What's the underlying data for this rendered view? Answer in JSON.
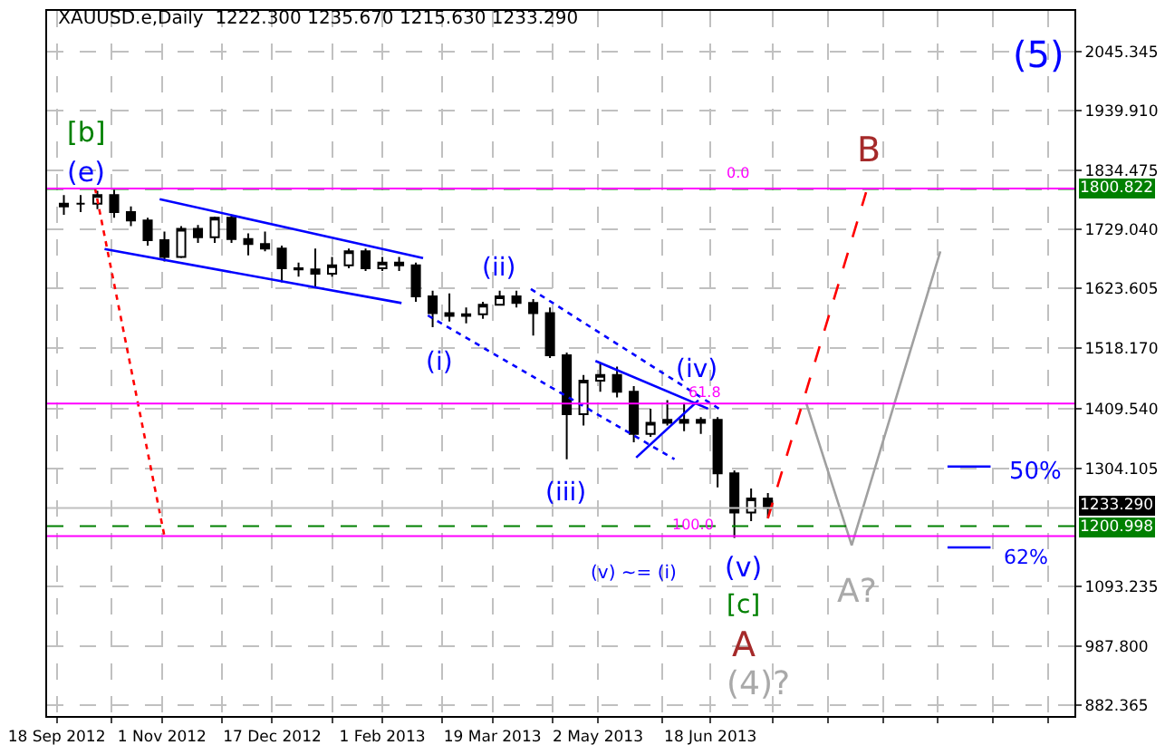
{
  "chart_data": {
    "type": "candlestick",
    "title": "XAUUSD.e,Daily  1222.300 1235.670 1215.630 1233.290",
    "x": [
      "2012-09-21",
      "2012-09-28",
      "2012-10-05",
      "2012-10-12",
      "2012-10-19",
      "2012-10-26",
      "2012-11-02",
      "2012-11-09",
      "2012-11-16",
      "2012-11-23",
      "2012-11-30",
      "2012-12-07",
      "2012-12-14",
      "2012-12-21",
      "2012-12-28",
      "2013-01-04",
      "2013-01-11",
      "2013-01-18",
      "2013-01-25",
      "2013-02-01",
      "2013-02-08",
      "2013-02-15",
      "2013-02-22",
      "2013-03-01",
      "2013-03-08",
      "2013-03-15",
      "2013-03-22",
      "2013-03-29",
      "2013-04-05",
      "2013-04-12",
      "2013-04-19",
      "2013-04-26",
      "2013-05-03",
      "2013-05-10",
      "2013-05-17",
      "2013-05-24",
      "2013-05-31",
      "2013-06-07",
      "2013-06-14",
      "2013-06-21",
      "2013-06-28",
      "2013-07-05",
      "2013-07-12"
    ],
    "ohlc": [
      [
        1770,
        1790,
        1755,
        1775
      ],
      [
        1775,
        1790,
        1760,
        1775
      ],
      [
        1775,
        1798,
        1765,
        1790
      ],
      [
        1790,
        1800,
        1750,
        1760
      ],
      [
        1760,
        1770,
        1735,
        1745
      ],
      [
        1745,
        1750,
        1700,
        1710
      ],
      [
        1710,
        1725,
        1672,
        1680
      ],
      [
        1680,
        1735,
        1678,
        1730
      ],
      [
        1730,
        1737,
        1705,
        1715
      ],
      [
        1715,
        1752,
        1705,
        1750
      ],
      [
        1750,
        1755,
        1705,
        1712
      ],
      [
        1712,
        1722,
        1683,
        1703
      ],
      [
        1703,
        1725,
        1690,
        1695
      ],
      [
        1695,
        1700,
        1635,
        1660
      ],
      [
        1660,
        1670,
        1645,
        1658
      ],
      [
        1658,
        1695,
        1625,
        1650
      ],
      [
        1650,
        1680,
        1645,
        1665
      ],
      [
        1665,
        1695,
        1660,
        1690
      ],
      [
        1690,
        1695,
        1655,
        1660
      ],
      [
        1660,
        1680,
        1655,
        1670
      ],
      [
        1670,
        1680,
        1655,
        1665
      ],
      [
        1665,
        1670,
        1600,
        1610
      ],
      [
        1610,
        1620,
        1555,
        1580
      ],
      [
        1580,
        1615,
        1565,
        1575
      ],
      [
        1575,
        1590,
        1562,
        1578
      ],
      [
        1578,
        1600,
        1570,
        1595
      ],
      [
        1595,
        1620,
        1595,
        1610
      ],
      [
        1610,
        1620,
        1590,
        1598
      ],
      [
        1598,
        1605,
        1540,
        1580
      ],
      [
        1580,
        1590,
        1500,
        1505
      ],
      [
        1505,
        1510,
        1320,
        1400
      ],
      [
        1400,
        1470,
        1380,
        1460
      ],
      [
        1460,
        1490,
        1440,
        1470
      ],
      [
        1470,
        1485,
        1430,
        1440
      ],
      [
        1440,
        1450,
        1350,
        1365
      ],
      [
        1365,
        1410,
        1360,
        1385
      ],
      [
        1385,
        1425,
        1380,
        1390
      ],
      [
        1390,
        1420,
        1370,
        1385
      ],
      [
        1385,
        1395,
        1365,
        1390
      ],
      [
        1390,
        1395,
        1270,
        1295
      ],
      [
        1295,
        1300,
        1180,
        1225
      ],
      [
        1225,
        1268,
        1210,
        1250
      ],
      [
        1250,
        1260,
        1215,
        1233
      ]
    ],
    "color": "#000000",
    "series": [
      {
        "type": "line",
        "x": [
          "2012-10-31",
          "2013-02-18"
        ],
        "values": [
          1783,
          1678
        ],
        "color": "#0000ff",
        "line_style": "solid"
      },
      {
        "type": "line",
        "x": [
          "2012-10-08",
          "2013-02-09"
        ],
        "values": [
          1694,
          1598
        ],
        "color": "#0000ff",
        "line_style": "solid"
      },
      {
        "type": "line",
        "x": [
          "2013-04-04",
          "2013-06-23"
        ],
        "values": [
          1623,
          1406
        ],
        "color": "#0000ff",
        "line_style": "dotted"
      },
      {
        "type": "line",
        "x": [
          "2013-02-20",
          "2013-06-03"
        ],
        "values": [
          1576,
          1320
        ],
        "color": "#0000ff",
        "line_style": "dotted"
      },
      {
        "type": "line",
        "x": [
          "2013-05-18",
          "2013-06-13"
        ],
        "values": [
          1323,
          1425
        ],
        "color": "#0000ff",
        "line_style": "solid"
      },
      {
        "type": "line",
        "x": [
          "2013-05-01",
          "2013-06-17"
        ],
        "values": [
          1495,
          1410
        ],
        "color": "#0000ff",
        "line_style": "solid"
      },
      {
        "type": "line",
        "x": [
          "2012-10-04",
          "2012-11-02"
        ],
        "values": [
          1803,
          1183
        ],
        "color": "#ff0000",
        "line_style": "dotted"
      },
      {
        "type": "line",
        "x": [
          "2013-07-12",
          "2013-08-22"
        ],
        "values": [
          1215,
          1795
        ],
        "color": "#ff0000",
        "line_style": "dashed"
      },
      {
        "type": "line",
        "x": [
          "2013-07-28",
          "2013-08-16",
          "2013-09-22"
        ],
        "values": [
          1420,
          1167,
          1690
        ],
        "color": "#a0a0a0",
        "line_style": "solid"
      },
      {
        "type": "line",
        "x": [
          "2013-09-25",
          "2013-10-13"
        ],
        "values": [
          1307,
          1307
        ],
        "color": "#0000ff",
        "line_style": "solid"
      },
      {
        "type": "line",
        "x": [
          "2013-09-25",
          "2013-10-13"
        ],
        "values": [
          1163,
          1163
        ],
        "color": "#0000ff",
        "line_style": "solid"
      }
    ],
    "ref_lines": [
      {
        "axis": "y",
        "value": 1800.822,
        "label": "1800.822",
        "color": "#008000",
        "line_style": "dashed"
      },
      {
        "axis": "y",
        "value": 1200.998,
        "label": "1200.998",
        "color": "#008000",
        "line_style": "dashed"
      },
      {
        "axis": "y",
        "value": 1233.29,
        "label": "1233.290",
        "color": "#c0c0c0",
        "line_style": "solid"
      },
      {
        "axis": "y",
        "value": 1802,
        "color": "#ff00ff",
        "line_style": "solid"
      },
      {
        "axis": "y",
        "value": 1419,
        "color": "#ff00ff",
        "line_style": "solid"
      },
      {
        "axis": "y",
        "value": 1183,
        "color": "#ff00ff",
        "line_style": "solid"
      }
    ],
    "annotations": [
      "[b]",
      "(e)",
      "(5)",
      "B",
      "(ii)",
      "(i)",
      "(iii)",
      "(iv)",
      "(v) ~= (i)",
      "(v)",
      "[c]",
      "A",
      "(4)?",
      "A?",
      "50%",
      "62%",
      "0.0",
      {
        "text": "61.8",
        "x": "2013-06-16",
        "y": 1438
      },
      {
        "text": "100.0",
        "x": "2013-06-11",
        "y": 1202
      }
    ],
    "xlim": [
      "2012-09-14",
      "2013-11-17"
    ],
    "xticks": [
      {
        "value": "2012-09-18",
        "label": "18 Sep 2012"
      },
      {
        "value": "2012-10-11",
        "label": null
      },
      {
        "value": "2012-11-01",
        "label": "1 Nov 2012"
      },
      {
        "value": "2012-11-26",
        "label": null
      },
      {
        "value": "2012-12-17",
        "label": "17 Dec 2012"
      },
      {
        "value": "2013-01-11",
        "label": null
      },
      {
        "value": "2013-02-01",
        "label": "1 Feb 2013"
      },
      {
        "value": "2013-02-26",
        "label": null
      },
      {
        "value": "2013-03-19",
        "label": "19 Mar 2013"
      },
      {
        "value": "2013-04-13",
        "label": null
      },
      {
        "value": "2013-05-02",
        "label": "2 May 2013"
      },
      {
        "value": "2013-05-29",
        "label": null
      },
      {
        "value": "2013-06-18",
        "label": "18 Jun 2013"
      },
      {
        "value": "2013-07-14",
        "label": null
      },
      {
        "value": "2013-08-06",
        "label": null
      },
      {
        "value": "2013-08-29",
        "label": null
      },
      {
        "value": "2013-09-21",
        "label": null
      },
      {
        "value": "2013-10-14",
        "label": null
      },
      {
        "value": "2013-11-06",
        "label": null
      }
    ],
    "ylim": [
      863,
      2118
    ],
    "yticks": [
      {
        "value": 882.365,
        "label": "882.365"
      },
      {
        "value": 987.8,
        "label": "987.800"
      },
      {
        "value": 1093.235,
        "label": "1093.235"
      },
      {
        "value": 1304.105,
        "label": "1304.105"
      },
      {
        "value": 1409.54,
        "label": "1409.540"
      },
      {
        "value": 1518.17,
        "label": "1518.170"
      },
      {
        "value": 1623.605,
        "label": "1623.605"
      },
      {
        "value": 1729.04,
        "label": "1729.040"
      },
      {
        "value": 1834.475,
        "label": "1834.475"
      },
      {
        "value": 1939.91,
        "label": "1939.910"
      },
      {
        "value": 2045.345,
        "label": "2045.345"
      }
    ],
    "grid": true
  }
}
